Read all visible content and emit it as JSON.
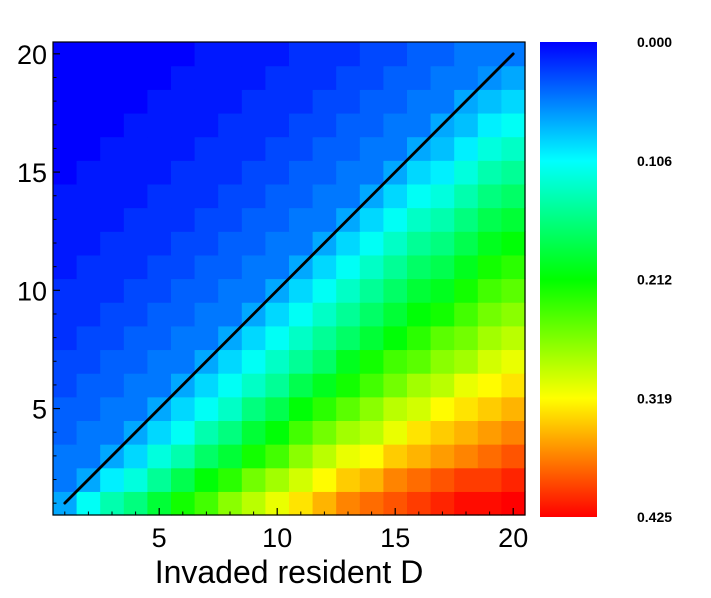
{
  "chart_data": {
    "type": "heatmap",
    "title": "",
    "xlabel": "Invaded resident D",
    "ylabel": "",
    "x": [
      1,
      2,
      3,
      4,
      5,
      6,
      7,
      8,
      9,
      10,
      11,
      12,
      13,
      14,
      15,
      16,
      17,
      18,
      19,
      20
    ],
    "y": [
      1,
      2,
      3,
      4,
      5,
      6,
      7,
      8,
      9,
      10,
      11,
      12,
      13,
      14,
      15,
      16,
      17,
      18,
      19,
      20
    ],
    "xlim": [
      0.5,
      20.5
    ],
    "ylim": [
      0.5,
      20.5
    ],
    "xticks": [
      "5",
      "10",
      "15",
      "20"
    ],
    "yticks": [
      "5",
      "10",
      "15",
      "20"
    ],
    "grid": false,
    "diagonal_line": {
      "from": [
        1,
        1
      ],
      "to": [
        20,
        20
      ],
      "color": "#000000"
    },
    "colorbar": {
      "labels": [
        "0.000",
        "0.106",
        "0.212",
        "0.319",
        "0.425"
      ],
      "min": 0.0,
      "max": 0.425,
      "colors": [
        "#0000ff",
        "#00ffff",
        "#00ff00",
        "#ffff00",
        "#ff0000"
      ]
    },
    "values_note_rows_bottom_to_top": "rows indexed by y=1..20, columns x=1..20",
    "values": [
      [
        0.07,
        0.11,
        0.14,
        0.16,
        0.19,
        0.22,
        0.24,
        0.27,
        0.29,
        0.31,
        0.33,
        0.35,
        0.37,
        0.38,
        0.39,
        0.4,
        0.41,
        0.42,
        0.42,
        0.425
      ],
      [
        0.05,
        0.07,
        0.1,
        0.12,
        0.15,
        0.18,
        0.21,
        0.23,
        0.26,
        0.28,
        0.3,
        0.32,
        0.34,
        0.35,
        0.37,
        0.38,
        0.39,
        0.4,
        0.4,
        0.41
      ],
      [
        0.05,
        0.05,
        0.07,
        0.09,
        0.12,
        0.14,
        0.17,
        0.19,
        0.22,
        0.24,
        0.27,
        0.29,
        0.31,
        0.32,
        0.34,
        0.35,
        0.36,
        0.37,
        0.38,
        0.39
      ],
      [
        0.04,
        0.05,
        0.05,
        0.07,
        0.09,
        0.11,
        0.14,
        0.16,
        0.19,
        0.21,
        0.24,
        0.26,
        0.28,
        0.29,
        0.31,
        0.33,
        0.34,
        0.35,
        0.36,
        0.37
      ],
      [
        0.04,
        0.04,
        0.05,
        0.05,
        0.07,
        0.09,
        0.11,
        0.13,
        0.16,
        0.18,
        0.21,
        0.23,
        0.25,
        0.27,
        0.29,
        0.3,
        0.32,
        0.33,
        0.34,
        0.35
      ],
      [
        0.03,
        0.04,
        0.04,
        0.05,
        0.05,
        0.07,
        0.09,
        0.11,
        0.13,
        0.15,
        0.18,
        0.2,
        0.22,
        0.24,
        0.26,
        0.28,
        0.29,
        0.31,
        0.32,
        0.33
      ],
      [
        0.03,
        0.03,
        0.04,
        0.04,
        0.05,
        0.05,
        0.07,
        0.09,
        0.11,
        0.13,
        0.15,
        0.17,
        0.2,
        0.22,
        0.24,
        0.25,
        0.27,
        0.28,
        0.3,
        0.31
      ],
      [
        0.02,
        0.03,
        0.03,
        0.04,
        0.04,
        0.05,
        0.05,
        0.07,
        0.09,
        0.11,
        0.13,
        0.15,
        0.17,
        0.19,
        0.21,
        0.23,
        0.25,
        0.26,
        0.28,
        0.29
      ],
      [
        0.02,
        0.02,
        0.03,
        0.03,
        0.04,
        0.04,
        0.05,
        0.05,
        0.07,
        0.09,
        0.11,
        0.13,
        0.15,
        0.17,
        0.19,
        0.21,
        0.22,
        0.24,
        0.26,
        0.27
      ],
      [
        0.02,
        0.02,
        0.02,
        0.03,
        0.03,
        0.04,
        0.04,
        0.05,
        0.05,
        0.07,
        0.09,
        0.11,
        0.13,
        0.15,
        0.17,
        0.19,
        0.2,
        0.22,
        0.24,
        0.25
      ],
      [
        0.01,
        0.02,
        0.02,
        0.02,
        0.03,
        0.03,
        0.04,
        0.04,
        0.05,
        0.05,
        0.07,
        0.09,
        0.11,
        0.13,
        0.15,
        0.17,
        0.18,
        0.2,
        0.22,
        0.23
      ],
      [
        0.01,
        0.01,
        0.02,
        0.02,
        0.02,
        0.03,
        0.03,
        0.04,
        0.04,
        0.05,
        0.05,
        0.07,
        0.09,
        0.11,
        0.13,
        0.15,
        0.16,
        0.18,
        0.2,
        0.21
      ],
      [
        0.01,
        0.01,
        0.01,
        0.02,
        0.02,
        0.02,
        0.03,
        0.03,
        0.04,
        0.04,
        0.05,
        0.05,
        0.07,
        0.09,
        0.11,
        0.13,
        0.14,
        0.16,
        0.18,
        0.19
      ],
      [
        0.01,
        0.01,
        0.01,
        0.01,
        0.02,
        0.02,
        0.02,
        0.03,
        0.03,
        0.04,
        0.04,
        0.05,
        0.05,
        0.07,
        0.09,
        0.11,
        0.12,
        0.14,
        0.16,
        0.17
      ],
      [
        0.0,
        0.01,
        0.01,
        0.01,
        0.01,
        0.02,
        0.02,
        0.02,
        0.03,
        0.03,
        0.04,
        0.04,
        0.05,
        0.05,
        0.07,
        0.09,
        0.1,
        0.12,
        0.14,
        0.15
      ],
      [
        0.0,
        0.0,
        0.01,
        0.01,
        0.01,
        0.01,
        0.02,
        0.02,
        0.02,
        0.03,
        0.03,
        0.04,
        0.04,
        0.05,
        0.05,
        0.07,
        0.08,
        0.1,
        0.12,
        0.13
      ],
      [
        0.0,
        0.0,
        0.0,
        0.01,
        0.01,
        0.01,
        0.01,
        0.02,
        0.02,
        0.02,
        0.03,
        0.03,
        0.04,
        0.04,
        0.05,
        0.05,
        0.07,
        0.08,
        0.1,
        0.11
      ],
      [
        0.0,
        0.0,
        0.0,
        0.0,
        0.01,
        0.01,
        0.01,
        0.01,
        0.02,
        0.02,
        0.02,
        0.03,
        0.03,
        0.04,
        0.04,
        0.05,
        0.05,
        0.07,
        0.08,
        0.09
      ],
      [
        0.0,
        0.0,
        0.0,
        0.0,
        0.0,
        0.01,
        0.01,
        0.01,
        0.01,
        0.02,
        0.02,
        0.02,
        0.03,
        0.03,
        0.04,
        0.04,
        0.05,
        0.05,
        0.06,
        0.07
      ],
      [
        0.0,
        0.0,
        0.0,
        0.0,
        0.0,
        0.0,
        0.01,
        0.01,
        0.01,
        0.01,
        0.02,
        0.02,
        0.02,
        0.03,
        0.03,
        0.04,
        0.04,
        0.05,
        0.05,
        0.05
      ]
    ]
  }
}
